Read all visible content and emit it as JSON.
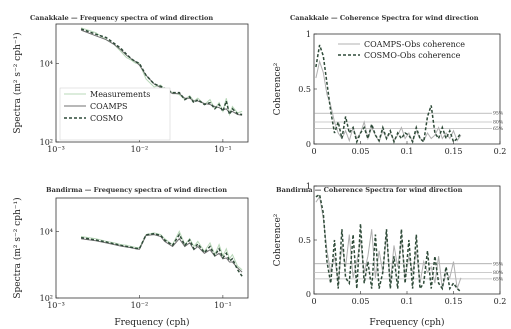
{
  "chart_data": [
    {
      "id": "spec1",
      "type": "line",
      "title": "Canakkale — Frequency spectra of wind direction",
      "xlabel": "",
      "ylabel": "Spectra (m² s⁻² cph⁻¹)",
      "x_scale": "log",
      "y_scale": "log",
      "xlim": [
        0.001,
        0.2
      ],
      "ylim": [
        100,
        100000
      ],
      "xticks": [
        0.001,
        0.01,
        0.1
      ],
      "xtick_labels": [
        "10⁻³",
        "10⁻²",
        "10⁻¹"
      ],
      "yticks": [
        100,
        10000
      ],
      "ytick_labels": [
        "10²",
        "10⁴"
      ],
      "legend": {
        "position": "lower-left",
        "entries": [
          "Measurements",
          "COAMPS",
          "COSMO"
        ]
      },
      "series": [
        {
          "name": "Measurements",
          "color": "#b8d8b8",
          "dash": "solid",
          "x": [
            0.002,
            0.003,
            0.004,
            0.005,
            0.006,
            0.007,
            0.008,
            0.009,
            0.01,
            0.012,
            0.015,
            0.018,
            0.02,
            0.025,
            0.03,
            0.035,
            0.04,
            0.045,
            0.05,
            0.06,
            0.07,
            0.08,
            0.09,
            0.1,
            0.11,
            0.12,
            0.13,
            0.15,
            0.17
          ],
          "y": [
            80000,
            60000,
            40000,
            30000,
            20000,
            14000,
            12000,
            10000,
            10000,
            4000,
            2500,
            2800,
            2200,
            1800,
            1600,
            1200,
            1500,
            1100,
            1300,
            900,
            1200,
            700,
            1000,
            600,
            1300,
            500,
            800,
            550,
            600
          ]
        },
        {
          "name": "COAMPS",
          "color": "#707070",
          "dash": "solid",
          "x": [
            0.002,
            0.003,
            0.004,
            0.005,
            0.006,
            0.007,
            0.008,
            0.009,
            0.01,
            0.012,
            0.015,
            0.018,
            0.02,
            0.025,
            0.03,
            0.035,
            0.04,
            0.045,
            0.05,
            0.06,
            0.07,
            0.08,
            0.09,
            0.1,
            0.11,
            0.12,
            0.13,
            0.15,
            0.17
          ],
          "y": [
            70000,
            50000,
            40000,
            30000,
            22000,
            16000,
            13000,
            11000,
            9000,
            5000,
            3000,
            2400,
            2200,
            1700,
            1700,
            1300,
            1300,
            1100,
            1100,
            950,
            900,
            800,
            750,
            650,
            700,
            550,
            600,
            500,
            480
          ]
        },
        {
          "name": "COSMO",
          "color": "#2e4a38",
          "dash": "dashed",
          "x": [
            0.002,
            0.003,
            0.004,
            0.005,
            0.006,
            0.007,
            0.008,
            0.009,
            0.01,
            0.012,
            0.015,
            0.018,
            0.02,
            0.025,
            0.03,
            0.035,
            0.04,
            0.045,
            0.05,
            0.06,
            0.07,
            0.08,
            0.09,
            0.1,
            0.11,
            0.12,
            0.13,
            0.15,
            0.17
          ],
          "y": [
            75000,
            55000,
            45000,
            32000,
            24000,
            17000,
            13000,
            11000,
            10000,
            5000,
            3000,
            2600,
            2300,
            1800,
            1800,
            1200,
            1400,
            1000,
            1200,
            900,
            1000,
            700,
            900,
            600,
            1100,
            500,
            700,
            520,
            500
          ]
        }
      ]
    },
    {
      "id": "coh1",
      "type": "line",
      "title": "Canakkale — Coherence Spectra for wind direction",
      "xlabel": "",
      "ylabel": "Coherence²",
      "x_scale": "linear",
      "y_scale": "linear",
      "xlim": [
        0,
        0.2
      ],
      "ylim": [
        0,
        1
      ],
      "xticks": [
        0,
        0.05,
        0.1,
        0.15,
        0.2
      ],
      "xtick_labels": [
        "0",
        "0.05",
        "0.1",
        "0.15",
        "0.2"
      ],
      "yticks": [
        0,
        0.5,
        1
      ],
      "ytick_labels": [
        "0",
        "0.5",
        "1"
      ],
      "legend": {
        "position": "top-right",
        "entries": [
          "COAMPS-Obs coherence",
          "COSMO-Obs coherence"
        ]
      },
      "confidence_lines": [
        {
          "label": "95%",
          "y": 0.28
        },
        {
          "label": "80%",
          "y": 0.2
        },
        {
          "label": "65%",
          "y": 0.14
        }
      ],
      "series": [
        {
          "name": "COAMPS-Obs coherence",
          "color": "#b0b0b0",
          "dash": "solid",
          "x": [
            0.002,
            0.006,
            0.01,
            0.014,
            0.018,
            0.022,
            0.026,
            0.03,
            0.034,
            0.038,
            0.042,
            0.046,
            0.05,
            0.054,
            0.058,
            0.062,
            0.066,
            0.07,
            0.074,
            0.078,
            0.082,
            0.086,
            0.09,
            0.094,
            0.098,
            0.102,
            0.106,
            0.11,
            0.114,
            0.118,
            0.122,
            0.126,
            0.13,
            0.134,
            0.138,
            0.142,
            0.146,
            0.15,
            0.154,
            0.158
          ],
          "y": [
            0.6,
            0.75,
            0.65,
            0.45,
            0.35,
            0.2,
            0.1,
            0.05,
            0.12,
            0.03,
            0.15,
            0.05,
            0.1,
            0.2,
            0.05,
            0.15,
            0.08,
            0.02,
            0.12,
            0.05,
            0.1,
            0.03,
            0.08,
            0.15,
            0.05,
            0.1,
            0.02,
            0.12,
            0.05,
            0.03,
            0.1,
            0.05,
            0.08,
            0.15,
            0.05,
            0.1,
            0.05,
            0.12,
            0.03,
            0.08
          ]
        },
        {
          "name": "COSMO-Obs coherence",
          "color": "#2e4a38",
          "dash": "dashed",
          "x": [
            0.002,
            0.006,
            0.01,
            0.014,
            0.018,
            0.022,
            0.026,
            0.03,
            0.034,
            0.038,
            0.042,
            0.046,
            0.05,
            0.054,
            0.058,
            0.062,
            0.066,
            0.07,
            0.074,
            0.078,
            0.082,
            0.086,
            0.09,
            0.094,
            0.098,
            0.102,
            0.106,
            0.11,
            0.114,
            0.118,
            0.122,
            0.126,
            0.13,
            0.134,
            0.138,
            0.142,
            0.146,
            0.15,
            0.154,
            0.158
          ],
          "y": [
            0.7,
            0.9,
            0.8,
            0.55,
            0.3,
            0.1,
            0.2,
            0.05,
            0.25,
            0.1,
            0.15,
            0.02,
            0.1,
            0.15,
            0.05,
            0.18,
            0.08,
            0.03,
            0.15,
            0.05,
            0.12,
            0.02,
            0.1,
            0.05,
            0.1,
            0.08,
            0.02,
            0.15,
            0.05,
            0.02,
            0.25,
            0.35,
            0.1,
            0.05,
            0.15,
            0.05,
            0.12,
            0.02,
            0.05,
            0.1
          ]
        }
      ]
    },
    {
      "id": "spec2",
      "type": "line",
      "title": "Bandirma — Frequency spectra of wind direction",
      "xlabel": "Frequency (cph)",
      "ylabel": "Spectra (m² s⁻² cph⁻¹)",
      "x_scale": "log",
      "y_scale": "log",
      "xlim": [
        0.001,
        0.2
      ],
      "ylim": [
        100,
        100000
      ],
      "xticks": [
        0.001,
        0.01,
        0.1
      ],
      "xtick_labels": [
        "10⁻³",
        "10⁻²",
        "10⁻¹"
      ],
      "yticks": [
        100,
        10000
      ],
      "ytick_labels": [
        "10²",
        "10⁴"
      ],
      "series": [
        {
          "name": "Measurements",
          "color": "#b8d8b8",
          "dash": "solid",
          "x": [
            0.002,
            0.003,
            0.004,
            0.005,
            0.006,
            0.007,
            0.008,
            0.009,
            0.01,
            0.012,
            0.015,
            0.018,
            0.02,
            0.025,
            0.03,
            0.035,
            0.04,
            0.045,
            0.05,
            0.06,
            0.07,
            0.08,
            0.09,
            0.1,
            0.11,
            0.12,
            0.13,
            0.15,
            0.17
          ],
          "y": [
            7000,
            6000,
            5000,
            4500,
            4000,
            3800,
            3500,
            3300,
            3200,
            8000,
            9000,
            8000,
            6000,
            4000,
            10000,
            4000,
            6000,
            3500,
            5000,
            2500,
            4500,
            2000,
            4000,
            1800,
            3000,
            1500,
            2000,
            900,
            700
          ]
        },
        {
          "name": "COAMPS",
          "color": "#707070",
          "dash": "solid",
          "x": [
            0.002,
            0.003,
            0.004,
            0.005,
            0.006,
            0.007,
            0.008,
            0.009,
            0.01,
            0.012,
            0.015,
            0.018,
            0.02,
            0.025,
            0.03,
            0.035,
            0.04,
            0.045,
            0.05,
            0.06,
            0.07,
            0.08,
            0.09,
            0.1,
            0.11,
            0.12,
            0.13,
            0.15,
            0.17
          ],
          "y": [
            6000,
            5200,
            4500,
            4000,
            3600,
            3400,
            3200,
            3000,
            2900,
            7500,
            8000,
            7000,
            5000,
            3500,
            6000,
            3500,
            4500,
            2800,
            3500,
            2200,
            2800,
            1800,
            2200,
            1500,
            1600,
            1200,
            1200,
            800,
            600
          ]
        },
        {
          "name": "COSMO",
          "color": "#2e4a38",
          "dash": "dashed",
          "x": [
            0.002,
            0.003,
            0.004,
            0.005,
            0.006,
            0.007,
            0.008,
            0.009,
            0.01,
            0.012,
            0.015,
            0.018,
            0.02,
            0.025,
            0.03,
            0.035,
            0.04,
            0.045,
            0.05,
            0.06,
            0.07,
            0.08,
            0.09,
            0.1,
            0.11,
            0.12,
            0.13,
            0.15,
            0.17
          ],
          "y": [
            6500,
            5500,
            4800,
            4200,
            3800,
            3500,
            3300,
            3100,
            3000,
            7800,
            8500,
            7500,
            5500,
            3800,
            8000,
            3800,
            5500,
            3000,
            4200,
            2300,
            3500,
            1900,
            3000,
            1600,
            2200,
            1300,
            1500,
            700,
            450
          ]
        }
      ]
    },
    {
      "id": "coh2",
      "type": "line",
      "title": "Bandirma — Coherence Spectra for wind direction",
      "xlabel": "Frequency (cph)",
      "ylabel": "Coherence²",
      "x_scale": "linear",
      "y_scale": "linear",
      "xlim": [
        0,
        0.2
      ],
      "ylim": [
        0,
        1
      ],
      "xticks": [
        0,
        0.05,
        0.1,
        0.15,
        0.2
      ],
      "xtick_labels": [
        "0",
        "0.05",
        "0.1",
        "0.15",
        "0.2"
      ],
      "yticks": [
        0,
        0.5,
        1
      ],
      "ytick_labels": [
        "0",
        "0.5",
        "1"
      ],
      "confidence_lines": [
        {
          "label": "95%",
          "y": 0.28
        },
        {
          "label": "80%",
          "y": 0.2
        },
        {
          "label": "65%",
          "y": 0.14
        }
      ],
      "series": [
        {
          "name": "COAMPS-Obs coherence",
          "color": "#b0b0b0",
          "dash": "solid",
          "x": [
            0.002,
            0.006,
            0.01,
            0.014,
            0.018,
            0.022,
            0.026,
            0.03,
            0.034,
            0.038,
            0.042,
            0.046,
            0.05,
            0.054,
            0.058,
            0.062,
            0.066,
            0.07,
            0.074,
            0.078,
            0.082,
            0.086,
            0.09,
            0.094,
            0.098,
            0.102,
            0.106,
            0.11,
            0.114,
            0.118,
            0.122,
            0.126,
            0.13,
            0.134,
            0.138,
            0.142,
            0.146,
            0.15,
            0.154,
            0.158
          ],
          "y": [
            0.85,
            0.9,
            0.7,
            0.4,
            0.2,
            0.35,
            0.1,
            0.45,
            0.25,
            0.55,
            0.15,
            0.3,
            0.5,
            0.2,
            0.35,
            0.6,
            0.15,
            0.4,
            0.2,
            0.55,
            0.1,
            0.45,
            0.25,
            0.5,
            0.15,
            0.35,
            0.2,
            0.4,
            0.1,
            0.3,
            0.2,
            0.25,
            0.1,
            0.35,
            0.05,
            0.2,
            0.15,
            0.3,
            0.05,
            0.15
          ]
        },
        {
          "name": "COSMO-Obs coherence",
          "color": "#2e4a38",
          "dash": "dashed",
          "x": [
            0.002,
            0.006,
            0.01,
            0.014,
            0.018,
            0.022,
            0.026,
            0.03,
            0.034,
            0.038,
            0.042,
            0.046,
            0.05,
            0.054,
            0.058,
            0.062,
            0.066,
            0.07,
            0.074,
            0.078,
            0.082,
            0.086,
            0.09,
            0.094,
            0.098,
            0.102,
            0.106,
            0.11,
            0.114,
            0.118,
            0.122,
            0.126,
            0.13,
            0.134,
            0.138,
            0.142,
            0.146,
            0.15,
            0.154,
            0.158
          ],
          "y": [
            0.9,
            0.92,
            0.75,
            0.3,
            0.1,
            0.5,
            0.05,
            0.6,
            0.15,
            0.1,
            0.55,
            0.05,
            0.65,
            0.1,
            0.3,
            0.05,
            0.55,
            0.05,
            0.2,
            0.6,
            0.05,
            0.35,
            0.05,
            0.6,
            0.1,
            0.5,
            0.05,
            0.55,
            0.05,
            0.1,
            0.4,
            0.05,
            0.35,
            0.1,
            0.05,
            0.25,
            0.05,
            0.1,
            0.05,
            0.02
          ]
        }
      ]
    }
  ]
}
